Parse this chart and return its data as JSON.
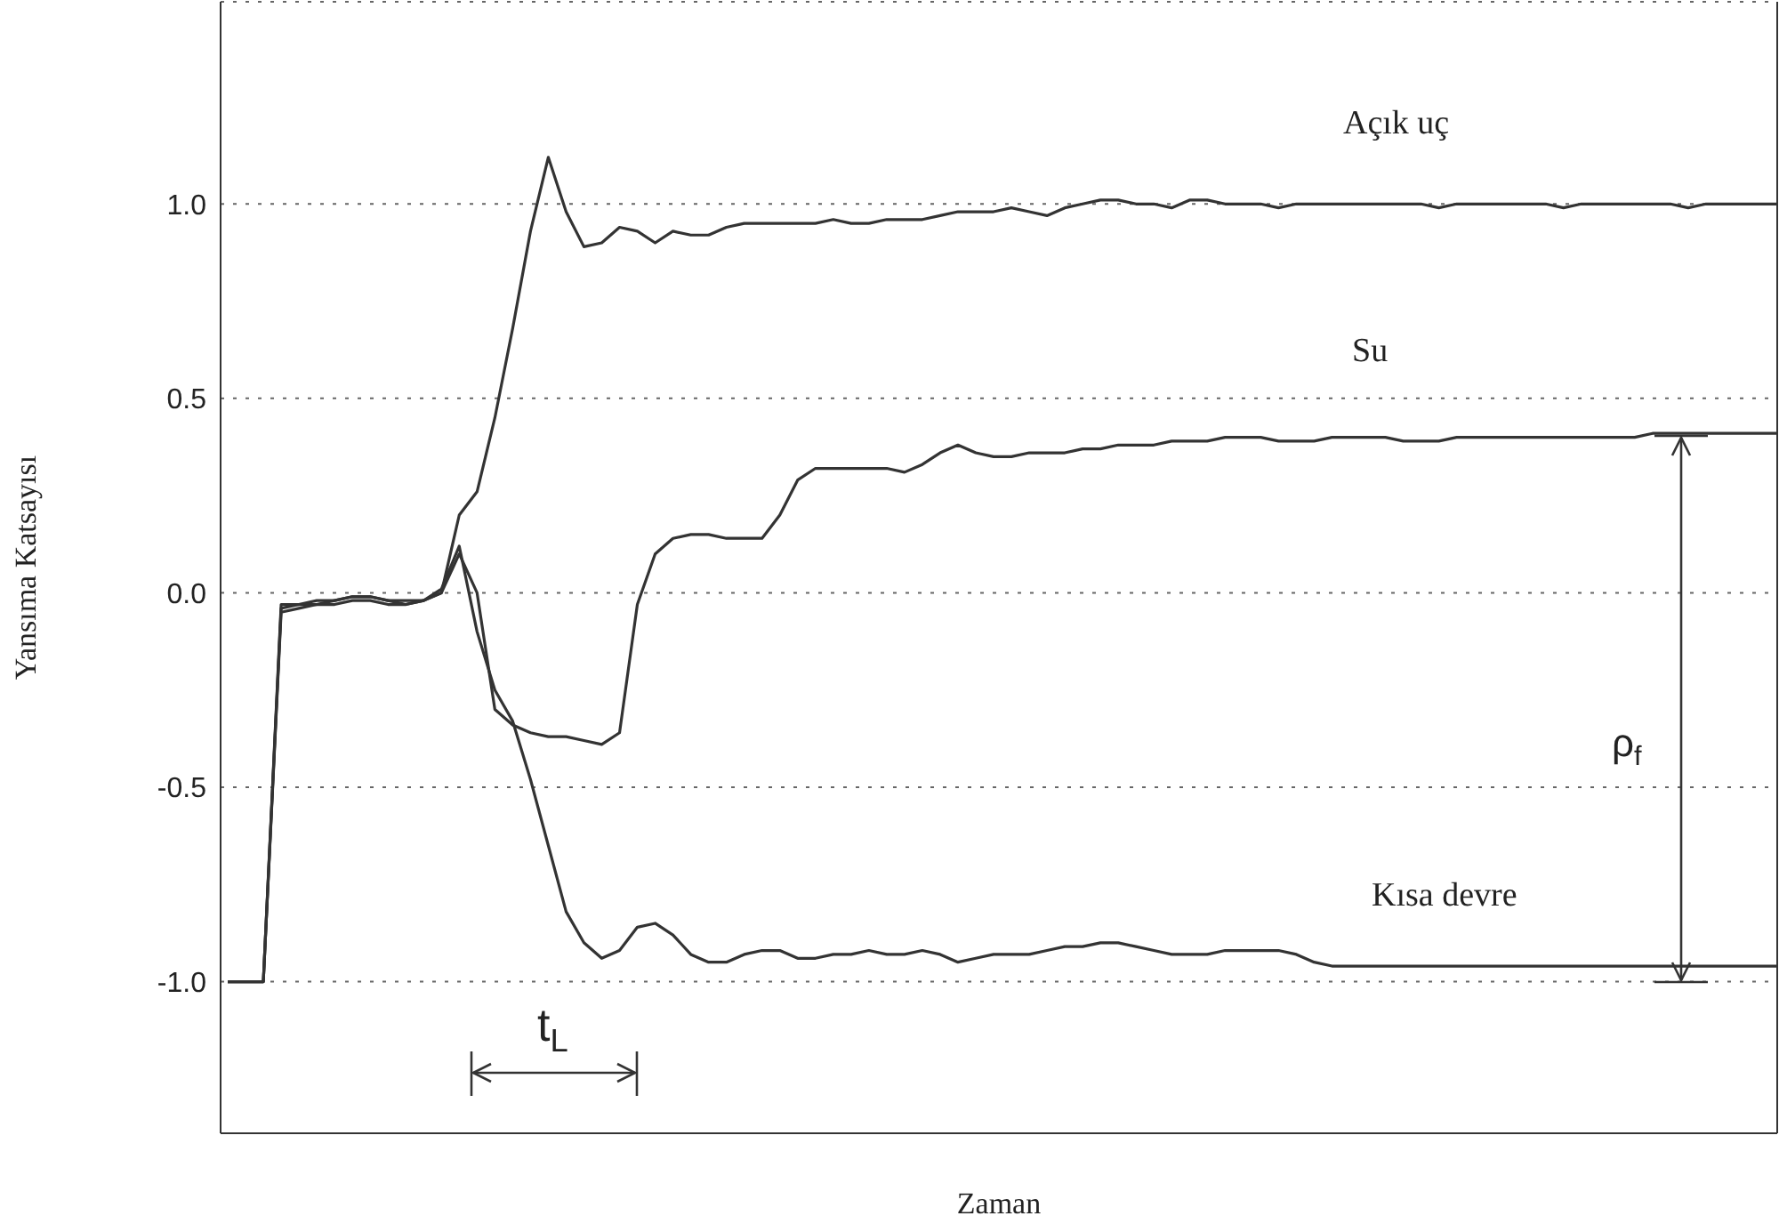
{
  "chart_data": {
    "type": "line",
    "xlabel": "Zaman",
    "ylabel": "Yansıma  Katsayısı",
    "categories": [
      null,
      null,
      null,
      null,
      null,
      null,
      null,
      null,
      null,
      null,
      null,
      null,
      null,
      null,
      null,
      null,
      null,
      null,
      null,
      null,
      null,
      null,
      null,
      null,
      null,
      null,
      null,
      null,
      null,
      null,
      null,
      null,
      null,
      null,
      null,
      null,
      null,
      null,
      null,
      null,
      null,
      null,
      null,
      null,
      null,
      null,
      null,
      null,
      null,
      null,
      null,
      null,
      null,
      null,
      null,
      null,
      null,
      null,
      null,
      null,
      null,
      null,
      null,
      null,
      null,
      null,
      null,
      null,
      null,
      null,
      null,
      null,
      null,
      null,
      null,
      null,
      null,
      null,
      null,
      null,
      null,
      null,
      null,
      null,
      null,
      null,
      null,
      null
    ],
    "series": [
      {
        "color": "#333333",
        "values": [
          -1.0,
          -1.0,
          -1.0,
          -0.04,
          -0.03,
          -0.03,
          -0.02,
          -0.01,
          -0.01,
          -0.02,
          -0.02,
          -0.02,
          0.0,
          0.2,
          0.26,
          0.45,
          0.68,
          0.93,
          1.12,
          0.98,
          0.89,
          0.9,
          0.94,
          0.93,
          0.9,
          0.93,
          0.92,
          0.92,
          0.94,
          0.95,
          0.95,
          0.95,
          0.95,
          0.95,
          0.96,
          0.95,
          0.95,
          0.96,
          0.96,
          0.96,
          0.97,
          0.98,
          0.98,
          0.98,
          0.99,
          0.98,
          0.97,
          0.99,
          1.0,
          1.01,
          1.01,
          1.0,
          1.0,
          0.99,
          1.01,
          1.01,
          1.0,
          1.0,
          1.0,
          0.99,
          1.0,
          1.0,
          1.0,
          1.0,
          1.0,
          1.0,
          1.0,
          1.0,
          0.99,
          1.0,
          1.0,
          1.0,
          1.0,
          1.0,
          1.0,
          0.99,
          1.0,
          1.0,
          1.0,
          1.0,
          1.0,
          1.0,
          0.99,
          1.0,
          1.0,
          1.0,
          1.0,
          1.0
        ]
      },
      {
        "color": "#333333",
        "values": [
          -1.0,
          -1.0,
          -1.0,
          -0.03,
          -0.03,
          -0.02,
          -0.02,
          -0.01,
          -0.01,
          -0.02,
          -0.03,
          -0.02,
          0.0,
          0.1,
          0.0,
          -0.3,
          -0.34,
          -0.36,
          -0.37,
          -0.37,
          -0.38,
          -0.39,
          -0.36,
          -0.03,
          0.1,
          0.14,
          0.15,
          0.15,
          0.14,
          0.14,
          0.14,
          0.2,
          0.29,
          0.32,
          0.32,
          0.32,
          0.32,
          0.32,
          0.31,
          0.33,
          0.36,
          0.38,
          0.36,
          0.35,
          0.35,
          0.36,
          0.36,
          0.36,
          0.37,
          0.37,
          0.38,
          0.38,
          0.38,
          0.39,
          0.39,
          0.39,
          0.4,
          0.4,
          0.4,
          0.39,
          0.39,
          0.39,
          0.4,
          0.4,
          0.4,
          0.4,
          0.39,
          0.39,
          0.39,
          0.4,
          0.4,
          0.4,
          0.4,
          0.4,
          0.4,
          0.4,
          0.4,
          0.4,
          0.4,
          0.4,
          0.41,
          0.41,
          0.41,
          0.41,
          0.41,
          0.41,
          0.41,
          0.41
        ]
      },
      {
        "color": "#333333",
        "values": [
          -1.0,
          -1.0,
          -1.0,
          -0.05,
          -0.04,
          -0.03,
          -0.03,
          -0.02,
          -0.02,
          -0.03,
          -0.03,
          -0.02,
          0.01,
          0.12,
          -0.1,
          -0.25,
          -0.33,
          -0.48,
          -0.65,
          -0.82,
          -0.9,
          -0.94,
          -0.92,
          -0.86,
          -0.85,
          -0.88,
          -0.93,
          -0.95,
          -0.95,
          -0.93,
          -0.92,
          -0.92,
          -0.94,
          -0.94,
          -0.93,
          -0.93,
          -0.92,
          -0.93,
          -0.93,
          -0.92,
          -0.93,
          -0.95,
          -0.94,
          -0.93,
          -0.93,
          -0.93,
          -0.92,
          -0.91,
          -0.91,
          -0.9,
          -0.9,
          -0.91,
          -0.92,
          -0.93,
          -0.93,
          -0.93,
          -0.92,
          -0.92,
          -0.92,
          -0.92,
          -0.93,
          -0.95,
          -0.96,
          -0.96,
          -0.96,
          -0.96,
          -0.96,
          -0.96,
          -0.96,
          -0.96,
          -0.96,
          -0.96,
          -0.96,
          -0.96,
          -0.96,
          -0.96,
          -0.96,
          -0.96,
          -0.96,
          -0.96,
          -0.96,
          -0.96,
          -0.96,
          -0.96,
          -0.96,
          -0.96,
          -0.96,
          -0.96
        ]
      }
    ],
    "ylim": [
      -1.39,
      1.52
    ],
    "yticks": [
      {
        "value": -1,
        "label": "-1.0"
      },
      {
        "value": -0.5,
        "label": "-0.5"
      },
      {
        "value": 0,
        "label": "0.0"
      },
      {
        "value": 0.5,
        "label": "0.5"
      },
      {
        "value": 1,
        "label": "1.0"
      }
    ],
    "grid": "y",
    "tick_labels": "y",
    "marker": "none",
    "line_style": "solid",
    "annotations": [
      "Açık uç",
      "Su",
      "Kısa devre",
      "t$_{L}$",
      "ρ$_{f}$"
    ]
  }
}
